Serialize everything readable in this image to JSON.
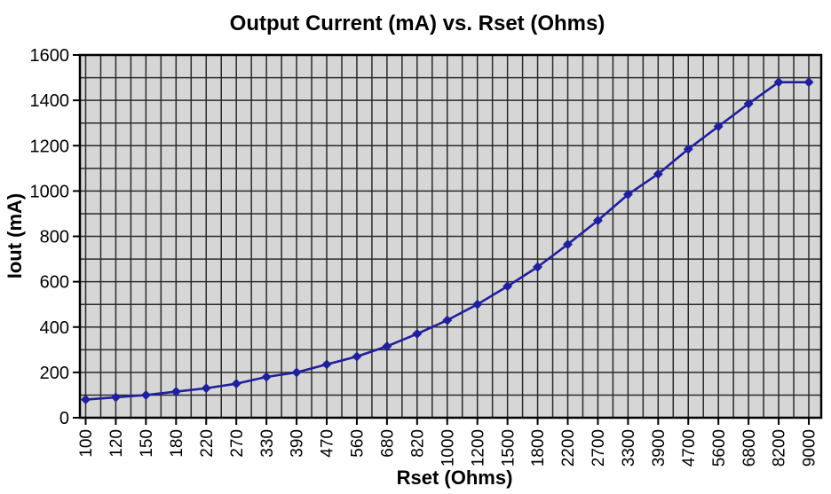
{
  "chart_data": {
    "type": "line",
    "title": "Output Current (mA) vs. Rset (Ohms)",
    "xlabel": "Rset (Ohms)",
    "ylabel": "Iout (mA)",
    "categories": [
      "100",
      "120",
      "150",
      "180",
      "220",
      "270",
      "330",
      "390",
      "470",
      "560",
      "680",
      "820",
      "1000",
      "1200",
      "1500",
      "1800",
      "2200",
      "2700",
      "3300",
      "3900",
      "4700",
      "5600",
      "6800",
      "8200",
      "9000"
    ],
    "values": [
      80,
      90,
      100,
      115,
      130,
      150,
      180,
      200,
      235,
      270,
      315,
      370,
      430,
      500,
      580,
      665,
      765,
      870,
      985,
      1075,
      1185,
      1285,
      1385,
      1480,
      1480
    ],
    "ylim": [
      0,
      1600
    ],
    "y_major_step": 200,
    "y_minor_step": 100,
    "x_minor_divisions_per_category": 2,
    "grid": true,
    "legend": "none",
    "marker": "diamond",
    "colors": {
      "series": "#20209E",
      "plot_background": "#D6D6D6",
      "gridline": "#2A2A2A",
      "axis": "#000000",
      "text": "#000000",
      "page_background": "#FFFFFF"
    }
  }
}
